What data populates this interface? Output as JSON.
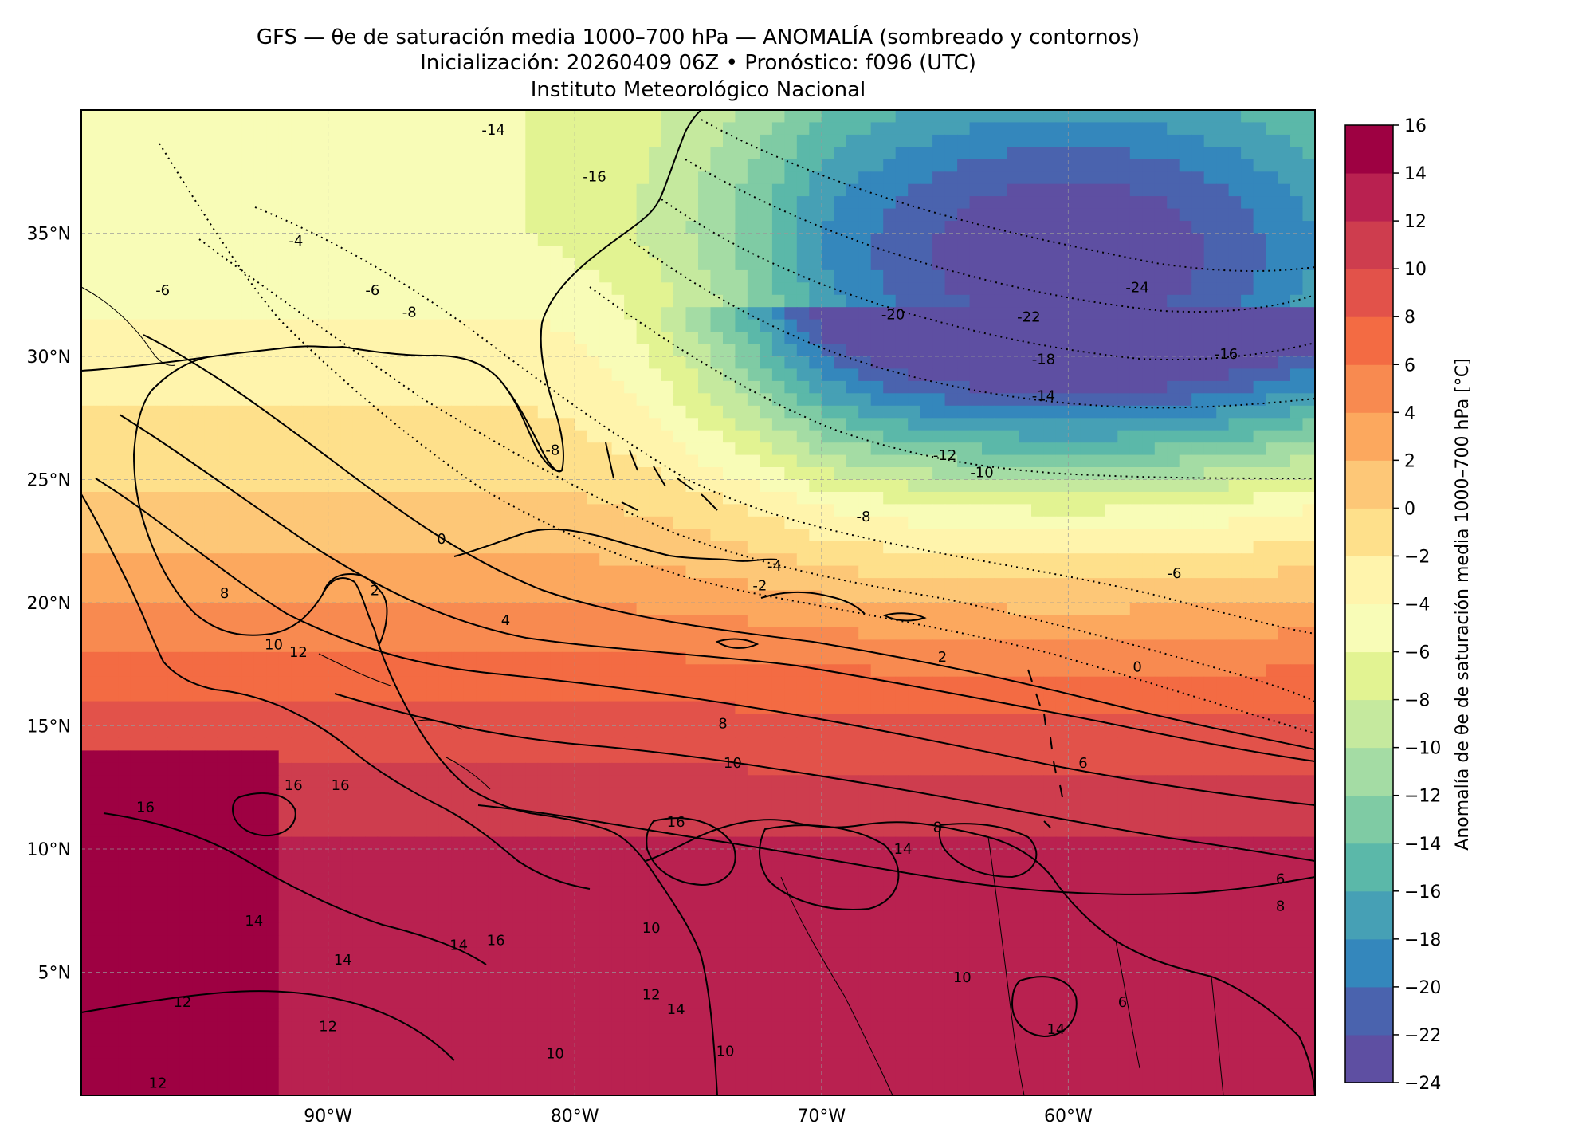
{
  "title": {
    "line1": "GFS — θe de saturación media 1000–700 hPa — ANOMALÍA (sombreado y contornos)",
    "line2": "Inicialización: 20260409 06Z   •   Pronóstico: f096 (UTC)",
    "line3": "Instituto Meteorológico Nacional"
  },
  "map": {
    "lon_range": [
      -100,
      -50
    ],
    "lat_range": [
      0,
      40
    ],
    "x_ticks": [
      {
        "lon": -90,
        "label": "90°W"
      },
      {
        "lon": -80,
        "label": "80°W"
      },
      {
        "lon": -70,
        "label": "70°W"
      },
      {
        "lon": -60,
        "label": "60°W"
      }
    ],
    "y_ticks": [
      {
        "lat": 35,
        "label": "35°N"
      },
      {
        "lat": 30,
        "label": "30°N"
      },
      {
        "lat": 25,
        "label": "25°N"
      },
      {
        "lat": 20,
        "label": "20°N"
      },
      {
        "lat": 15,
        "label": "15°N"
      },
      {
        "lat": 10,
        "label": "10°N"
      },
      {
        "lat": 5,
        "label": "5°N"
      }
    ],
    "gridlines": true,
    "field_bands": [
      {
        "lat": 40,
        "value": -6
      },
      {
        "lat": 35,
        "value": -6
      },
      {
        "lat": 30,
        "value": -3
      },
      {
        "lat": 26,
        "value": -1
      },
      {
        "lat": 22,
        "value": 2
      },
      {
        "lat": 19,
        "value": 5
      },
      {
        "lat": 16,
        "value": 8
      },
      {
        "lat": 12,
        "value": 11
      },
      {
        "lat": 8,
        "value": 14
      },
      {
        "lat": 4,
        "value": 13
      },
      {
        "lat": 0,
        "value": 12
      }
    ],
    "east_anomaly": {
      "lon_center": -60,
      "lat_center": 34,
      "min_value": -24
    },
    "contour_labels": [
      {
        "text": "-14",
        "lon": -83.3,
        "lat": 39.0
      },
      {
        "text": "-16",
        "lon": -79.2,
        "lat": 37.1
      },
      {
        "text": "-4",
        "lon": -91.3,
        "lat": 34.5
      },
      {
        "text": "-6",
        "lon": -88.2,
        "lat": 32.5
      },
      {
        "text": "-8",
        "lon": -86.7,
        "lat": 31.6
      },
      {
        "text": "-6",
        "lon": -96.7,
        "lat": 32.5
      },
      {
        "text": "-8",
        "lon": -80.9,
        "lat": 26.0
      },
      {
        "text": "-20",
        "lon": -67.1,
        "lat": 31.5
      },
      {
        "text": "-22",
        "lon": -61.6,
        "lat": 31.4
      },
      {
        "text": "-24",
        "lon": -57.2,
        "lat": 32.6
      },
      {
        "text": "-18",
        "lon": -61.0,
        "lat": 29.7
      },
      {
        "text": "-16",
        "lon": -53.6,
        "lat": 29.9
      },
      {
        "text": "-14",
        "lon": -61.0,
        "lat": 28.2
      },
      {
        "text": "-12",
        "lon": -65.0,
        "lat": 25.8
      },
      {
        "text": "-10",
        "lon": -63.5,
        "lat": 25.1
      },
      {
        "text": "-8",
        "lon": -68.3,
        "lat": 23.3
      },
      {
        "text": "-4",
        "lon": -71.9,
        "lat": 21.3
      },
      {
        "text": "-2",
        "lon": -72.5,
        "lat": 20.5
      },
      {
        "text": "-6",
        "lon": -55.7,
        "lat": 21.0
      },
      {
        "text": "0",
        "lon": -85.4,
        "lat": 22.4
      },
      {
        "text": "2",
        "lon": -88.1,
        "lat": 20.3
      },
      {
        "text": "4",
        "lon": -82.8,
        "lat": 19.1
      },
      {
        "text": "2",
        "lon": -65.1,
        "lat": 17.6
      },
      {
        "text": "0",
        "lon": -57.2,
        "lat": 17.2
      },
      {
        "text": "8",
        "lon": -74.0,
        "lat": 14.9
      },
      {
        "text": "10",
        "lon": -73.6,
        "lat": 13.3
      },
      {
        "text": "16",
        "lon": -91.4,
        "lat": 12.4
      },
      {
        "text": "16",
        "lon": -89.5,
        "lat": 12.4
      },
      {
        "text": "16",
        "lon": -97.4,
        "lat": 11.5
      },
      {
        "text": "16",
        "lon": -75.9,
        "lat": 10.9
      },
      {
        "text": "14",
        "lon": -66.7,
        "lat": 9.8
      },
      {
        "text": "8",
        "lon": -65.3,
        "lat": 10.7
      },
      {
        "text": "14",
        "lon": -93.0,
        "lat": 6.9
      },
      {
        "text": "10",
        "lon": -76.9,
        "lat": 6.6
      },
      {
        "text": "16",
        "lon": -83.2,
        "lat": 6.1
      },
      {
        "text": "14",
        "lon": -84.7,
        "lat": 5.9
      },
      {
        "text": "14",
        "lon": -89.4,
        "lat": 5.3
      },
      {
        "text": "12",
        "lon": -95.9,
        "lat": 3.6
      },
      {
        "text": "12",
        "lon": -90.0,
        "lat": 2.6
      },
      {
        "text": "12",
        "lon": -76.9,
        "lat": 3.9
      },
      {
        "text": "14",
        "lon": -75.9,
        "lat": 3.3
      },
      {
        "text": "10",
        "lon": -73.9,
        "lat": 1.6
      },
      {
        "text": "10",
        "lon": -80.8,
        "lat": 1.5
      },
      {
        "text": "10",
        "lon": -64.3,
        "lat": 4.6
      },
      {
        "text": "14",
        "lon": -60.5,
        "lat": 2.5
      },
      {
        "text": "6",
        "lon": -57.8,
        "lat": 3.6
      },
      {
        "text": "12",
        "lon": -96.9,
        "lat": 0.3
      },
      {
        "text": "6",
        "lon": -59.4,
        "lat": 13.3
      },
      {
        "text": "6",
        "lon": -51.4,
        "lat": 8.6
      },
      {
        "text": "8",
        "lon": -51.4,
        "lat": 7.5
      },
      {
        "text": "8",
        "lon": -94.2,
        "lat": 20.2
      },
      {
        "text": "10",
        "lon": -92.2,
        "lat": 18.1
      },
      {
        "text": "12",
        "lon": -91.2,
        "lat": 17.8
      }
    ]
  },
  "colorbar": {
    "label": "Anomalía de θe de saturación media 1000–700 hPa [°C]",
    "min": -24,
    "max": 16,
    "step": 2,
    "tick_labels": [
      "16",
      "14",
      "12",
      "10",
      "8",
      "6",
      "4",
      "2",
      "0",
      "−2",
      "−4",
      "−6",
      "−8",
      "−10",
      "−12",
      "−14",
      "−16",
      "−18",
      "−20",
      "−22",
      "−24"
    ],
    "colors": [
      "#5e4fa2",
      "#4a63ae",
      "#3487bc",
      "#46a0b5",
      "#5bb8a9",
      "#7fcba4",
      "#a4dca4",
      "#c5e99e",
      "#e2f392",
      "#f8fcb7",
      "#fff4ac",
      "#fee08b",
      "#fdc777",
      "#fca85e",
      "#f88a50",
      "#f36b43",
      "#e2524a",
      "#ce3d4e",
      "#b92150",
      "#9e0142"
    ]
  }
}
